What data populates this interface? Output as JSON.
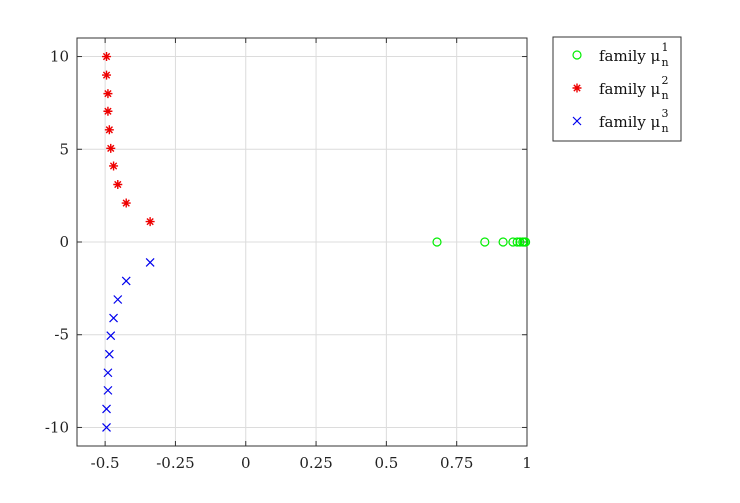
{
  "chart_data": {
    "type": "scatter",
    "xlim": [
      -0.6,
      1.0
    ],
    "ylim": [
      -11,
      11
    ],
    "xticks": [
      -0.5,
      -0.25,
      0,
      0.25,
      0.5,
      0.75,
      1
    ],
    "xtick_labels": [
      "-0.5",
      "-0.25",
      "0",
      "0.25",
      "0.5",
      "0.75",
      "1"
    ],
    "yticks": [
      10,
      5,
      0,
      -5,
      -10
    ],
    "ytick_labels": [
      "10",
      "5",
      "0",
      "-5",
      "-10"
    ],
    "grid": true,
    "legend_position": "outside-top-right",
    "series": [
      {
        "name": "family μ",
        "legend_sub": "n",
        "legend_sup": "1",
        "marker": "circle",
        "color": "#00ee00",
        "x": [
          0.68,
          0.85,
          0.915,
          0.95,
          0.965,
          0.975,
          0.985,
          0.99,
          0.995
        ],
        "y": [
          0,
          0,
          0,
          0,
          0,
          0,
          0,
          0,
          0
        ]
      },
      {
        "name": "family μ",
        "legend_sub": "n",
        "legend_sup": "2",
        "marker": "asterisk",
        "color": "#ee0000",
        "x": [
          -0.34,
          -0.425,
          -0.455,
          -0.47,
          -0.48,
          -0.485,
          -0.49,
          -0.49,
          -0.495,
          -0.495
        ],
        "y": [
          1.1,
          2.1,
          3.1,
          4.1,
          5.05,
          6.05,
          7.05,
          8.0,
          9.0,
          10.0
        ]
      },
      {
        "name": "family μ",
        "legend_sub": "n",
        "legend_sup": "3",
        "marker": "x",
        "color": "#0000ee",
        "x": [
          -0.34,
          -0.425,
          -0.455,
          -0.47,
          -0.48,
          -0.485,
          -0.49,
          -0.49,
          -0.495,
          -0.495
        ],
        "y": [
          -1.1,
          -2.1,
          -3.1,
          -4.1,
          -5.05,
          -6.05,
          -7.05,
          -8.0,
          -9.0,
          -10.0
        ]
      }
    ]
  }
}
